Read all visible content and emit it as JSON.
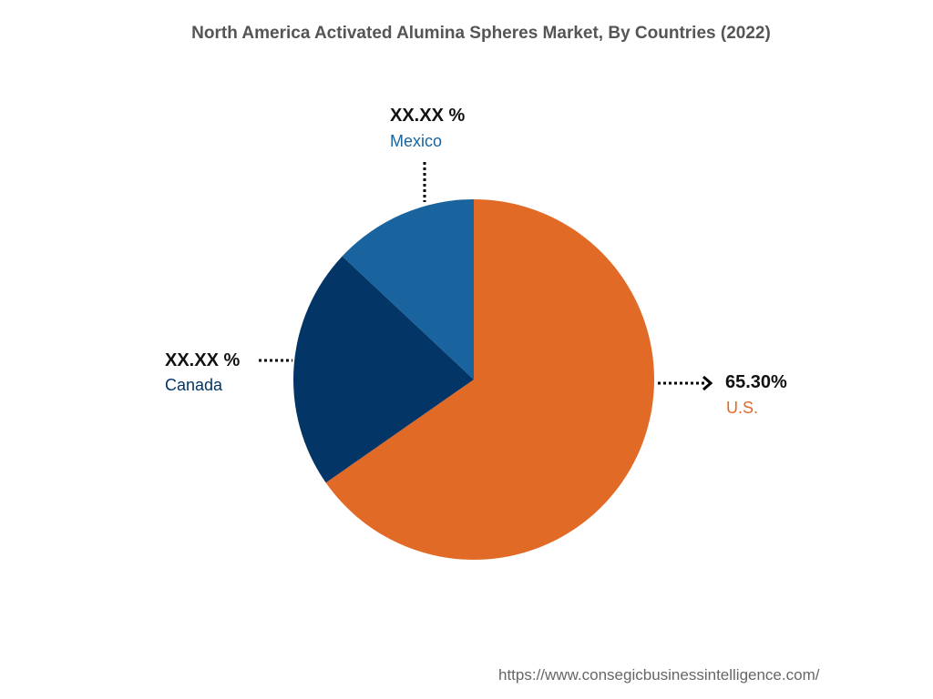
{
  "chart_data": {
    "type": "pie",
    "title": "North America Activated Alumina Spheres Market, By Countries (2022)",
    "categories": [
      "U.S.",
      "Canada",
      "Mexico"
    ],
    "values": [
      65.3,
      21.7,
      13.0
    ],
    "value_labels": [
      "65.30%",
      "XX.XX %",
      "XX.XX %"
    ],
    "colors": [
      "#e26a27",
      "#033566",
      "#19649e"
    ],
    "start_angle_deg": 0,
    "direction": "clockwise",
    "legend": "none",
    "grid": false
  },
  "watermark": "https://www.consegicbusinessintelligence.com/"
}
